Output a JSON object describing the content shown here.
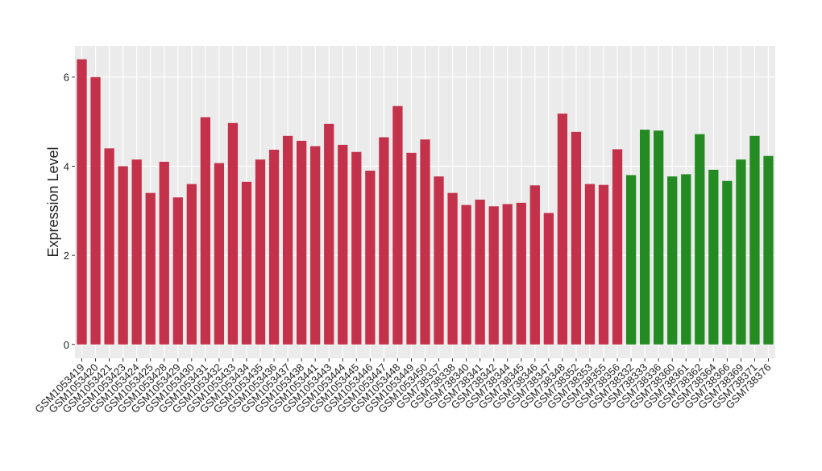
{
  "chart_data": {
    "type": "bar",
    "y_label": "Expression Level",
    "categories": [
      "GSM1053419",
      "GSM1053420",
      "GSM1053421",
      "GSM1053423",
      "GSM1053424",
      "GSM1053425",
      "GSM1053428",
      "GSM1053429",
      "GSM1053430",
      "GSM1053431",
      "GSM1053432",
      "GSM1053433",
      "GSM1053434",
      "GSM1053435",
      "GSM1053436",
      "GSM1053437",
      "GSM1053438",
      "GSM1053441",
      "GSM1053443",
      "GSM1053444",
      "GSM1053445",
      "GSM1053446",
      "GSM1053447",
      "GSM1053448",
      "GSM1053449",
      "GSM1053450",
      "GSM738337",
      "GSM738338",
      "GSM738340",
      "GSM738341",
      "GSM738342",
      "GSM738344",
      "GSM738345",
      "GSM738346",
      "GSM738347",
      "GSM738348",
      "GSM738352",
      "GSM738353",
      "GSM738355",
      "GSM738356",
      "GSM738332",
      "GSM738333",
      "GSM738336",
      "GSM738360",
      "GSM738361",
      "GSM738362",
      "GSM738364",
      "GSM738366",
      "GSM738369",
      "GSM738371",
      "GSM738376"
    ],
    "series": [
      {
        "color": "#c3314a",
        "values": [
          6.4,
          6.0,
          4.4,
          4.0,
          4.15,
          3.4,
          4.1,
          3.3,
          3.6,
          5.1,
          4.07,
          4.97,
          3.65,
          4.15,
          4.37,
          4.68,
          4.57,
          4.45,
          4.95,
          4.48,
          4.32,
          3.9,
          4.65,
          5.35,
          4.3,
          4.6,
          3.77,
          3.4,
          3.13,
          3.25,
          3.1,
          3.15,
          3.18,
          3.57,
          2.95,
          5.18,
          4.77,
          3.6,
          3.58,
          4.38,
          null,
          null,
          null,
          null,
          null,
          null,
          null,
          null,
          null,
          null,
          null
        ]
      },
      {
        "color": "#238b22",
        "values": [
          null,
          null,
          null,
          null,
          null,
          null,
          null,
          null,
          null,
          null,
          null,
          null,
          null,
          null,
          null,
          null,
          null,
          null,
          null,
          null,
          null,
          null,
          null,
          null,
          null,
          null,
          null,
          null,
          null,
          null,
          null,
          null,
          null,
          null,
          null,
          null,
          null,
          null,
          null,
          null,
          3.8,
          4.82,
          4.8,
          3.77,
          3.82,
          4.72,
          3.92,
          3.67,
          4.15,
          4.68,
          4.23
        ]
      }
    ],
    "ylim": [
      -0.31,
      6.7
    ],
    "yticks": [
      0,
      2,
      4,
      6
    ],
    "grid": true
  }
}
